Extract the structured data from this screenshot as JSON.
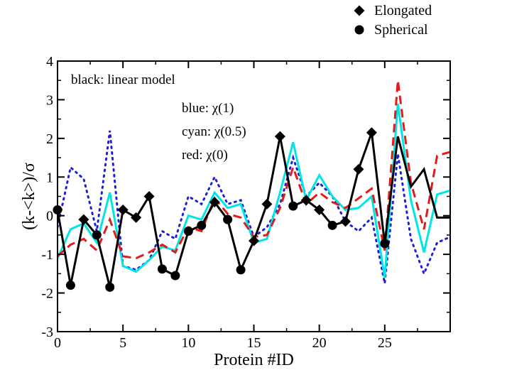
{
  "chart_data": {
    "type": "line",
    "title": "",
    "xlabel": "Protein #ID",
    "ylabel": "(k-<k>)/σ",
    "xlim": [
      0,
      30
    ],
    "ylim": [
      -3,
      4
    ],
    "x_ticks": [
      0,
      5,
      10,
      15,
      20,
      25
    ],
    "x_tick_labels": [
      "0",
      "5",
      "10",
      "15",
      "20",
      "25"
    ],
    "y_ticks": [
      -3,
      -2,
      -1,
      0,
      1,
      2,
      3,
      4
    ],
    "y_tick_labels": [
      "-3",
      "-2",
      "-1",
      "0",
      "1",
      "2",
      "3",
      "4"
    ],
    "grid": false,
    "annotations": [
      "black: linear model",
      "blue: χ(1)",
      "cyan: χ(0.5)",
      "red: χ(0)"
    ],
    "legend": {
      "placement": "top-right, outside plot",
      "entries": [
        {
          "label": "Elongated",
          "marker": "diamond"
        },
        {
          "label": "Spherical",
          "marker": "circle"
        }
      ]
    },
    "series": [
      {
        "name": "blue: χ(1)",
        "color": "#1f1fd6",
        "style": "dotted",
        "x": [
          0,
          1,
          2,
          3,
          4,
          5,
          6,
          7,
          8,
          9,
          10,
          11,
          12,
          13,
          14,
          15,
          16,
          17,
          18,
          19,
          20,
          21,
          22,
          23,
          24,
          25,
          26,
          27,
          28,
          29,
          30
        ],
        "values": [
          -0.3,
          1.25,
          0.95,
          -0.4,
          2.2,
          -1.3,
          -1.4,
          -1.15,
          -0.4,
          -0.6,
          0.5,
          0.3,
          1.0,
          0.3,
          0.4,
          -0.55,
          -0.3,
          0.3,
          1.5,
          0.5,
          0.85,
          0.5,
          -0.15,
          -0.4,
          -0.05,
          -1.75,
          1.6,
          -0.6,
          -1.5,
          -0.7,
          -0.55
        ]
      },
      {
        "name": "cyan: χ(0.5)",
        "color": "#00e5e5",
        "style": "solid",
        "x": [
          0,
          1,
          2,
          3,
          4,
          5,
          6,
          7,
          8,
          9,
          10,
          11,
          12,
          13,
          14,
          15,
          16,
          17,
          18,
          19,
          20,
          21,
          22,
          23,
          24,
          25,
          26,
          27,
          28,
          29,
          30
        ],
        "values": [
          -1.1,
          -0.35,
          -0.2,
          -0.7,
          0.6,
          -1.3,
          -1.45,
          -1.15,
          -0.8,
          -0.9,
          0.0,
          -0.1,
          0.6,
          0.2,
          0.3,
          -0.7,
          -0.6,
          0.6,
          1.9,
          0.4,
          1.05,
          0.5,
          0.15,
          0.2,
          0.5,
          -1.6,
          2.9,
          0.4,
          -0.95,
          0.55,
          0.65
        ]
      },
      {
        "name": "red: χ(0)",
        "color": "#e01c1c",
        "style": "dashed",
        "x": [
          0,
          1,
          2,
          3,
          4,
          5,
          6,
          7,
          8,
          9,
          10,
          11,
          12,
          13,
          14,
          15,
          16,
          17,
          18,
          19,
          20,
          21,
          22,
          23,
          24,
          25,
          26,
          27,
          28,
          29,
          30
        ],
        "values": [
          -1.05,
          -0.75,
          -0.6,
          -0.9,
          -0.1,
          -1.05,
          -1.1,
          -0.95,
          -0.75,
          -0.95,
          -0.3,
          -0.4,
          0.45,
          0.05,
          -0.05,
          -0.55,
          -0.5,
          0.2,
          1.25,
          0.3,
          0.6,
          0.35,
          0.2,
          0.45,
          0.7,
          -0.9,
          3.5,
          0.85,
          -0.35,
          1.55,
          1.65
        ]
      },
      {
        "name": "black: linear model",
        "color": "#000000",
        "style": "solid",
        "x": [
          0,
          1,
          2,
          3,
          4,
          5,
          6,
          7,
          8,
          9,
          10,
          11,
          12,
          13,
          14,
          15,
          16,
          17,
          18,
          19,
          20,
          21,
          22,
          23,
          24,
          25,
          26,
          27,
          28,
          29,
          30
        ],
        "values": [
          0.15,
          -1.8,
          -0.1,
          -0.5,
          -1.85,
          0.15,
          -0.05,
          0.5,
          -1.38,
          -1.55,
          -0.4,
          -0.25,
          0.35,
          -0.1,
          -1.4,
          -0.65,
          0.3,
          2.05,
          0.25,
          0.4,
          0.15,
          -0.25,
          -0.15,
          1.2,
          2.15,
          -0.72,
          2.05,
          0.75,
          1.2,
          -0.05,
          -0.05
        ],
        "markers": [
          {
            "x": 0,
            "y": 0.15,
            "shape": "circle"
          },
          {
            "x": 1,
            "y": -1.8,
            "shape": "circle"
          },
          {
            "x": 2,
            "y": -0.1,
            "shape": "diamond"
          },
          {
            "x": 3,
            "y": -0.5,
            "shape": "circle"
          },
          {
            "x": 4,
            "y": -1.85,
            "shape": "circle"
          },
          {
            "x": 5,
            "y": 0.15,
            "shape": "diamond"
          },
          {
            "x": 6,
            "y": -0.05,
            "shape": "diamond"
          },
          {
            "x": 7,
            "y": 0.5,
            "shape": "diamond"
          },
          {
            "x": 8,
            "y": -1.38,
            "shape": "circle"
          },
          {
            "x": 9,
            "y": -1.55,
            "shape": "circle"
          },
          {
            "x": 10,
            "y": -0.4,
            "shape": "circle"
          },
          {
            "x": 11,
            "y": -0.25,
            "shape": "circle"
          },
          {
            "x": 12,
            "y": 0.35,
            "shape": "diamond"
          },
          {
            "x": 13,
            "y": -0.1,
            "shape": "circle"
          },
          {
            "x": 14,
            "y": -1.4,
            "shape": "circle"
          },
          {
            "x": 15,
            "y": -0.65,
            "shape": "diamond"
          },
          {
            "x": 16,
            "y": 0.3,
            "shape": "diamond"
          },
          {
            "x": 17,
            "y": 2.05,
            "shape": "diamond"
          },
          {
            "x": 18,
            "y": 0.25,
            "shape": "circle"
          },
          {
            "x": 19,
            "y": 0.4,
            "shape": "diamond"
          },
          {
            "x": 20,
            "y": 0.15,
            "shape": "diamond"
          },
          {
            "x": 21,
            "y": -0.25,
            "shape": "circle"
          },
          {
            "x": 22,
            "y": -0.15,
            "shape": "diamond"
          },
          {
            "x": 23,
            "y": 1.2,
            "shape": "diamond"
          },
          {
            "x": 24,
            "y": 2.15,
            "shape": "diamond"
          },
          {
            "x": 25,
            "y": -0.72,
            "shape": "circle"
          }
        ]
      }
    ]
  }
}
